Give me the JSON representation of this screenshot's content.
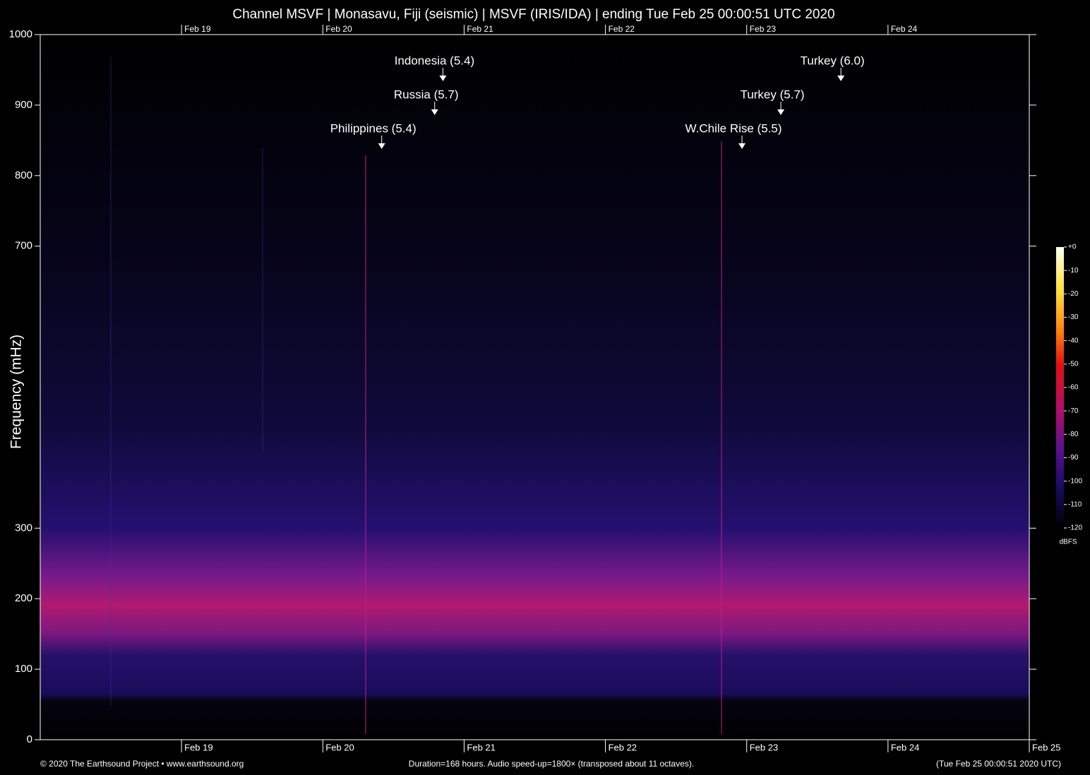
{
  "chart_data": {
    "type": "spectrogram",
    "title": "Channel MSVF | Monasavu, Fiji (seismic) | MSVF (IRIS/IDA) | ending Tue Feb 25 00:00:51 UTC 2020",
    "y_label": "Frequency (mHz)",
    "ylim": [
      0,
      1000
    ],
    "yticks": [
      0,
      100,
      200,
      300,
      700,
      800,
      900,
      1000
    ],
    "xlim": [
      0,
      168
    ],
    "xticks": [
      {
        "value": 24,
        "label": "Feb 19"
      },
      {
        "value": 48,
        "label": "Feb 20"
      },
      {
        "value": 72,
        "label": "Feb 21"
      },
      {
        "value": 96,
        "label": "Feb 22"
      },
      {
        "value": 120,
        "label": "Feb 23"
      },
      {
        "value": 144,
        "label": "Feb 24"
      },
      {
        "value": 168,
        "label": "Feb 25"
      }
    ],
    "annotations": [
      {
        "text": "Philippines (5.4)",
        "x": 58
      },
      {
        "text": "Indonesia (5.4)",
        "x": 68.4
      },
      {
        "text": "Russia (5.7)",
        "x": 67
      },
      {
        "text": "W.Chile Rise (5.5)",
        "x": 119.2
      },
      {
        "text": "Turkey (5.7)",
        "x": 125.8
      },
      {
        "text": "Turkey (6.0)",
        "x": 136
      }
    ],
    "colorbar": {
      "label": "dBFS",
      "lim": [
        -120,
        0
      ],
      "ticks": [
        {
          "value": 0,
          "label": "+0"
        },
        -10,
        -20,
        -30,
        -40,
        -50,
        -60,
        -70,
        -80,
        -90,
        -100,
        -110,
        -120
      ]
    },
    "footer_left": "© 2020 The Earthsound Project • www.earthsound.org",
    "footer_center": "Duration=168 hours. Audio speed-up=1800× (transposed about 11 octaves).",
    "footer_right": "(Tue Feb 25 00:00:51 2020 UTC)"
  }
}
